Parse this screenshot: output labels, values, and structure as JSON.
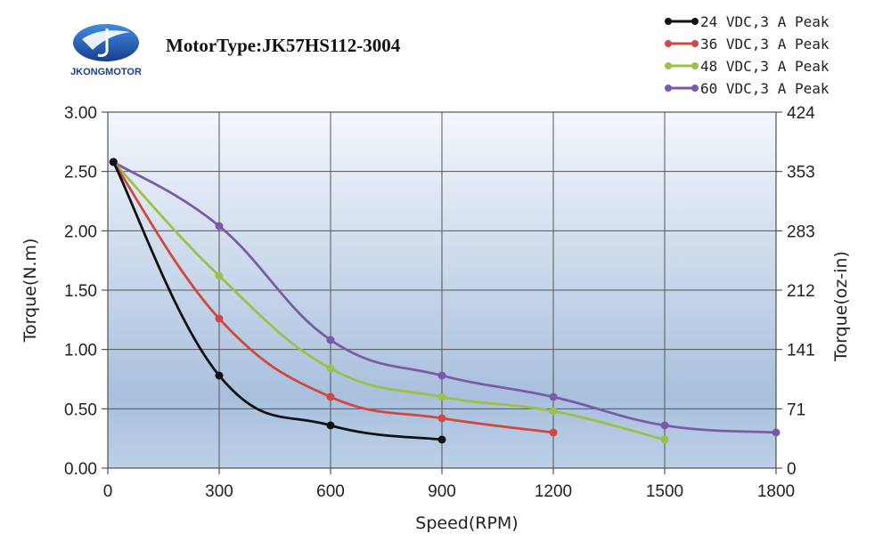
{
  "brand": {
    "name": "JKONGMOTOR",
    "colors": {
      "primary": "#1a3e8c",
      "light": "#3f8ee0"
    }
  },
  "chart_data": {
    "type": "line",
    "title": "MotorType:JK57HS112-3004",
    "xlabel": "Speed(RPM)",
    "ylabel": "Torque(N.m)",
    "y2label": "Torque(oz-in)",
    "xlim": [
      0,
      1800
    ],
    "ylim": [
      0,
      3.0
    ],
    "y2lim": [
      0,
      424
    ],
    "x_ticks": [
      0,
      300,
      600,
      900,
      1200,
      1500,
      1800
    ],
    "y_ticks": [
      0.0,
      0.5,
      1.0,
      1.5,
      2.0,
      2.5,
      3.0
    ],
    "x_tick_labels": [
      "0",
      "300",
      "600",
      "900",
      "1200",
      "1500",
      "1800"
    ],
    "y_tick_labels": [
      "0.00",
      "0.50",
      "1.00",
      "1.50",
      "2.00",
      "2.50",
      "3.00"
    ],
    "y2_tick_labels": [
      "0",
      "71",
      "141",
      "212",
      "283",
      "353",
      "424"
    ],
    "grid": true,
    "legend_position": "top-right",
    "series": [
      {
        "name": "24 VDC,3 A Peak",
        "color": "#111111",
        "x": [
          15,
          300,
          600,
          900
        ],
        "y": [
          2.58,
          0.78,
          0.36,
          0.24
        ]
      },
      {
        "name": "36 VDC,3 A Peak",
        "color": "#d04840",
        "x": [
          15,
          300,
          600,
          900,
          1200
        ],
        "y": [
          2.58,
          1.26,
          0.6,
          0.42,
          0.3
        ]
      },
      {
        "name": "48 VDC,3 A Peak",
        "color": "#9bc148",
        "x": [
          15,
          300,
          600,
          900,
          1200,
          1500
        ],
        "y": [
          2.58,
          1.62,
          0.84,
          0.6,
          0.48,
          0.24
        ]
      },
      {
        "name": "60 VDC,3 A Peak",
        "color": "#7b5ba8",
        "x": [
          15,
          300,
          600,
          900,
          1200,
          1500,
          1800
        ],
        "y": [
          2.58,
          2.04,
          1.08,
          0.78,
          0.6,
          0.36,
          0.3
        ]
      }
    ]
  }
}
